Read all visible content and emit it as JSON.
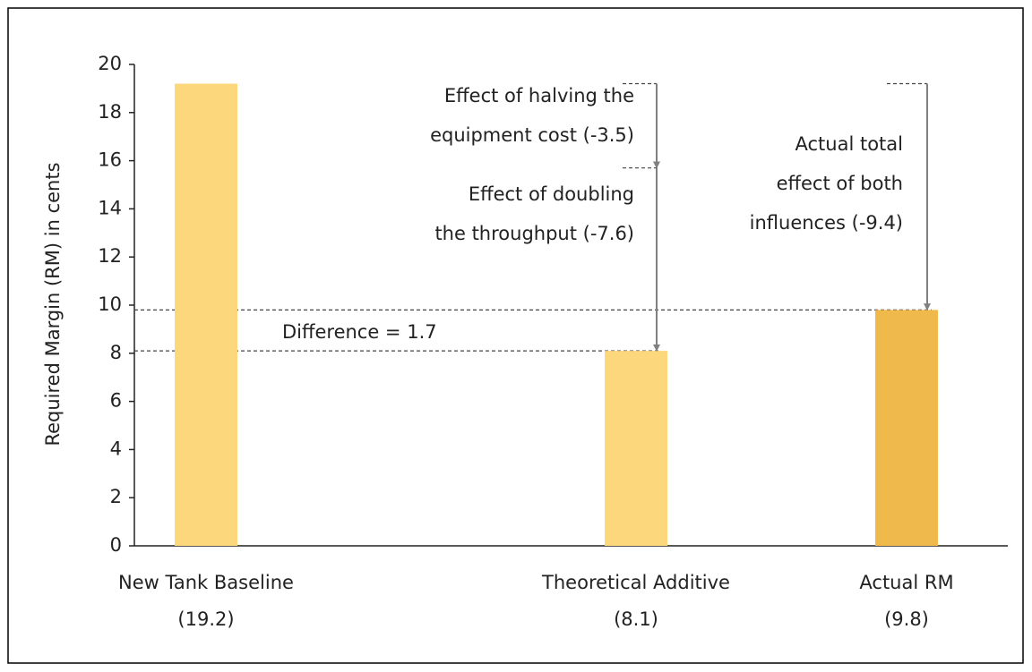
{
  "chart_data": {
    "type": "bar",
    "y_label": "Required Margin (RM) in cents",
    "categories": [
      "New Tank Baseline",
      "Theoretical Additive",
      "Actual RM"
    ],
    "values": [
      19.2,
      8.1,
      9.8
    ],
    "value_labels": [
      "(19.2)",
      "(8.1)",
      "(9.8)"
    ],
    "colors": [
      "#fdd77c",
      "#fdd77c",
      "#f0b94c"
    ],
    "ylim": [
      0,
      20
    ],
    "yticks": [
      0,
      2,
      4,
      6,
      8,
      10,
      12,
      14,
      16,
      18,
      20
    ],
    "annotations": [
      {
        "lines": [
          "Effect of halving the",
          "equipment cost (-3.5)"
        ],
        "value": -3.5
      },
      {
        "lines": [
          "Effect of doubling",
          "the throughput (-7.6)"
        ],
        "value": -7.6
      },
      {
        "lines": [
          "Actual total",
          "effect of both",
          "influences (-9.4)"
        ],
        "value": -9.4
      },
      {
        "lines": [
          "Difference = 1.7"
        ],
        "value": 1.7
      }
    ]
  }
}
